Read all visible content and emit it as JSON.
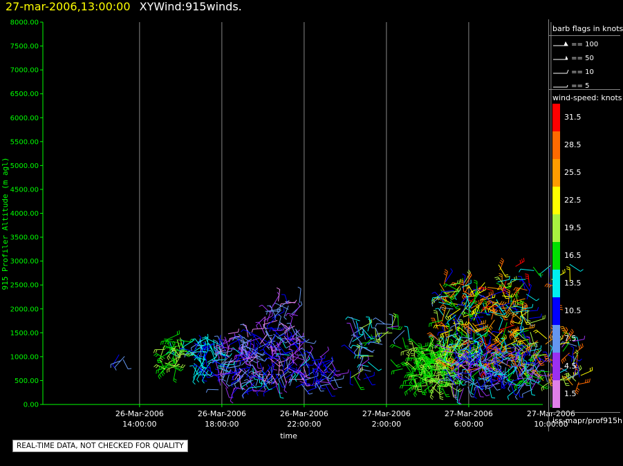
{
  "header": {
    "datetime": "27-mar-2006,13:00:00",
    "title": "XYWind:915winds."
  },
  "chart_data": {
    "type": "scatter",
    "glyph": "wind-barb",
    "title": "XYWind:915winds.",
    "xlabel": "time",
    "ylabel": "915 Profiler Altitude (m agl)",
    "ylim": [
      0,
      8000
    ],
    "yticks": [
      "0.00",
      "500.00",
      "1000.00",
      "1500.00",
      "2000.00",
      "2500.00",
      "3000.00",
      "3500.00",
      "4000.00",
      "4500.00",
      "5000.00",
      "5500.00",
      "6000.00",
      "6500.00",
      "7000.00",
      "7500.00",
      "8000.00"
    ],
    "xlim_hours_rel": [
      -14.7,
      9.6
    ],
    "xticks": [
      {
        "date": "26-Mar-2006",
        "time": "14:00:00",
        "h": -10
      },
      {
        "date": "26-Mar-2006",
        "time": "18:00:00",
        "h": -6
      },
      {
        "date": "26-Mar-2006",
        "time": "22:00:00",
        "h": -2
      },
      {
        "date": "27-Mar-2006",
        "time": "2:00:00",
        "h": 2
      },
      {
        "date": "27-Mar-2006",
        "time": "6:00:00",
        "h": 6
      },
      {
        "date": "27-Mar-2006",
        "time": "10:00:00",
        "h": 10
      }
    ],
    "grid": true,
    "clusters": [
      {
        "t0": -11.0,
        "t1": -10.7,
        "a0": 900,
        "a1": 1300,
        "n": 4,
        "s0": 8,
        "s1": 11
      },
      {
        "t0": -8.8,
        "t1": -8.0,
        "a0": 700,
        "a1": 1400,
        "n": 40,
        "s0": 14,
        "s1": 20
      },
      {
        "t0": -7.4,
        "t1": -6.2,
        "a0": 600,
        "a1": 1400,
        "n": 60,
        "s0": 8,
        "s1": 15
      },
      {
        "t0": -6.2,
        "t1": -2.0,
        "a0": 300,
        "a1": 1500,
        "n": 230,
        "s0": 1,
        "s1": 13
      },
      {
        "t0": -4.0,
        "t1": -2.2,
        "a0": 1500,
        "a1": 2200,
        "n": 40,
        "s0": 2,
        "s1": 10
      },
      {
        "t0": -2.0,
        "t1": -0.5,
        "a0": 350,
        "a1": 1000,
        "n": 40,
        "s0": 3,
        "s1": 12
      },
      {
        "t0": 0.2,
        "t1": 1.5,
        "a0": 500,
        "a1": 1750,
        "n": 40,
        "s0": 4,
        "s1": 20
      },
      {
        "t0": 1.7,
        "t1": 3.2,
        "a0": 600,
        "a1": 1700,
        "n": 18,
        "s0": 5,
        "s1": 20
      },
      {
        "t0": 3.3,
        "t1": 5.2,
        "a0": 350,
        "a1": 1200,
        "n": 170,
        "s0": 15,
        "s1": 20
      },
      {
        "t0": 4.5,
        "t1": 9.0,
        "a0": 700,
        "a1": 2600,
        "n": 300,
        "s0": 8,
        "s1": 31
      },
      {
        "t0": 5.0,
        "t1": 9.5,
        "a0": 300,
        "a1": 1200,
        "n": 170,
        "s0": 3,
        "s1": 14
      },
      {
        "t0": 8.5,
        "t1": 11.5,
        "a0": 400,
        "a1": 1400,
        "n": 70,
        "s0": 4,
        "s1": 30
      },
      {
        "t0": 4.5,
        "t1": 11.0,
        "a0": 2100,
        "a1": 3150,
        "n": 18,
        "s0": 10,
        "s1": 31
      }
    ]
  },
  "legend": {
    "barb_title": "barb flags in knots",
    "barb_labels": [
      "== 100",
      "== 50",
      "== 10",
      "== 5"
    ],
    "speed_title": "wind-speed: knots",
    "speed_levels": [
      {
        "label": "31.5",
        "color": "#ff0000"
      },
      {
        "label": "28.5",
        "color": "#ff6a00"
      },
      {
        "label": "25.5",
        "color": "#ff9c00"
      },
      {
        "label": "22.5",
        "color": "#ffff00"
      },
      {
        "label": "19.5",
        "color": "#a8f040"
      },
      {
        "label": "16.5",
        "color": "#00e000"
      },
      {
        "label": "13.5",
        "color": "#00f0f0"
      },
      {
        "label": "10.5",
        "color": "#0000ff"
      },
      {
        "label": "7.5",
        "color": "#6496f0"
      },
      {
        "label": "4.5",
        "color": "#9a30f0"
      },
      {
        "label": "1.5",
        "color": "#e080e8"
      }
    ],
    "source": "iss-mapr/prof915h"
  },
  "colors": {
    "axis": "#00ff00",
    "grid": "#888888",
    "background": "#000000"
  },
  "footer": {
    "qc_note": "REAL-TIME DATA, NOT CHECKED FOR QUALITY"
  }
}
